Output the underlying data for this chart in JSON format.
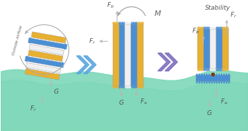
{
  "bg_color": "#ffffff",
  "water_color_top": "#7dd8b8",
  "water_color_mid": "#5abf9a",
  "device_yellow": "#e8b030",
  "device_blue": "#4a8fd4",
  "device_white": "#f0f0f0",
  "device_green": "#b8e8c8",
  "arrow_blue": "#5ba8e0",
  "arrow_purple": "#8070c0",
  "force_arrow_color": "#b8b8b8",
  "text_color": "#505050",
  "title": "Stability",
  "outside_airflow": "Outside Airflow",
  "figsize": [
    3.58,
    1.89
  ],
  "dpi": 100
}
